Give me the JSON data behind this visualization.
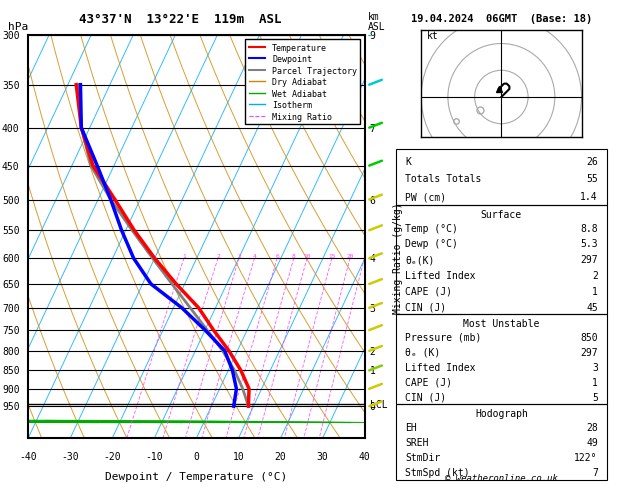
{
  "title_left": "43°37'N  13°22'E  119m  ASL",
  "title_right": "19.04.2024  06GMT  (Base: 18)",
  "xlabel": "Dewpoint / Temperature (°C)",
  "pressure_levels": [
    300,
    350,
    400,
    450,
    500,
    550,
    600,
    650,
    700,
    750,
    800,
    850,
    900,
    950
  ],
  "temp_xlim": [
    -40,
    40
  ],
  "mixing_ratio_values": [
    1,
    2,
    3,
    4,
    6,
    8,
    10,
    15,
    20,
    25
  ],
  "temp_profile_T": [
    8.8,
    7.0,
    3.0,
    -2.0,
    -8.0,
    -14.0,
    -22.0,
    -30.0,
    -38.0,
    -46.0,
    -55.0,
    -62.0,
    -68.0
  ],
  "temp_profile_P": [
    950,
    900,
    850,
    800,
    750,
    700,
    650,
    600,
    550,
    500,
    450,
    400,
    350
  ],
  "dewp_profile_T": [
    5.3,
    4.0,
    1.0,
    -3.0,
    -10.0,
    -18.0,
    -28.0,
    -35.0,
    -41.0,
    -47.0,
    -54.0,
    -62.0,
    -67.0
  ],
  "dewp_profile_P": [
    950,
    900,
    850,
    800,
    750,
    700,
    650,
    600,
    550,
    500,
    450,
    400,
    350
  ],
  "parcel_T": [
    8.8,
    5.5,
    1.5,
    -3.5,
    -9.5,
    -16.0,
    -23.0,
    -30.5,
    -38.5,
    -47.0,
    -55.5,
    -62.0,
    -67.5
  ],
  "parcel_P": [
    950,
    900,
    850,
    800,
    750,
    700,
    650,
    600,
    550,
    500,
    450,
    400,
    350
  ],
  "lcl_pressure": 943,
  "km_ticks": {
    "300": 9,
    "400": 7,
    "500": 6,
    "600": 4,
    "700": 3,
    "800": 2,
    "850": 1,
    "950": 0
  },
  "right_panel_data": {
    "K": 26,
    "Totals_Totals": 55,
    "PW_cm": 1.4,
    "Surface_Temp": 8.8,
    "Surface_Dewp": 5.3,
    "Surface_ThetaE": 297,
    "Surface_LI": 2,
    "Surface_CAPE": 1,
    "Surface_CIN": 45,
    "MU_Pressure": 850,
    "MU_ThetaE": 297,
    "MU_LI": 3,
    "MU_CAPE": 1,
    "MU_CIN": 5,
    "EH": 28,
    "SREH": 49,
    "StmDir": 122,
    "StmSpd": 7
  },
  "colors": {
    "temperature": "#ff0000",
    "dewpoint": "#0000ff",
    "parcel": "#808080",
    "dry_adiabat": "#cc8800",
    "wet_adiabat": "#00aa00",
    "isotherm": "#00aaff",
    "mixing_ratio": "#ff44ff",
    "background": "#ffffff",
    "grid": "#000000"
  }
}
